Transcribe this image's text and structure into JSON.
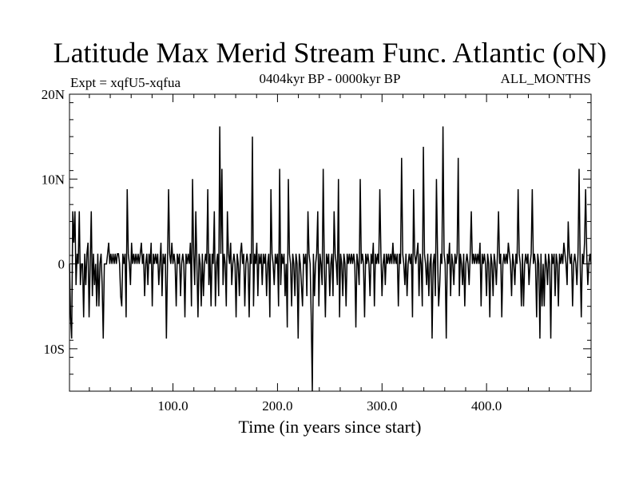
{
  "chart_data": {
    "type": "line",
    "title": "Latitude Max Merid Stream Func. Atlantic (oN)",
    "subtitle_left": "Expt = xqfU5-xqfua",
    "subtitle_center": "0404kyr BP - 0000kyr BP",
    "subtitle_right": "ALL_MONTHS",
    "xlabel": "Time (in years since start)",
    "ylabel": "",
    "xlim": [
      1,
      500
    ],
    "ylim": [
      -15,
      20
    ],
    "x_ticks": [
      {
        "value": 100,
        "label": "100.0"
      },
      {
        "value": 200,
        "label": "200.0"
      },
      {
        "value": 300,
        "label": "300.0"
      },
      {
        "value": 400,
        "label": "400.0"
      }
    ],
    "y_ticks": [
      {
        "value": 20,
        "label": "20N"
      },
      {
        "value": 10,
        "label": "10N"
      },
      {
        "value": 0,
        "label": "0"
      },
      {
        "value": -10,
        "label": "10S"
      }
    ],
    "grid": false,
    "series": [
      {
        "name": "",
        "color": "#000000",
        "values": [
          0,
          -6.3,
          -8.8,
          6.2,
          2.5,
          6.2,
          -2.5,
          1.2,
          0,
          6.2,
          -2.5,
          0,
          0,
          -6.3,
          1.2,
          -2.5,
          1.2,
          2.5,
          -6.3,
          0,
          6.2,
          -3.8,
          1.2,
          -2.5,
          0,
          -5,
          1.2,
          -5,
          0,
          1.2,
          -2.5,
          -8.8,
          0,
          0,
          0,
          1.2,
          2.5,
          0,
          1.2,
          0,
          1.2,
          0,
          1.2,
          0,
          1.2,
          1.2,
          0,
          -3.8,
          -5,
          1.2,
          0,
          1.2,
          -6.3,
          8.8,
          1.2,
          0,
          -2.5,
          2.5,
          0,
          1.2,
          0,
          1.2,
          0,
          1.2,
          0,
          1.2,
          2.5,
          0,
          1.2,
          -3.8,
          0,
          1.2,
          -2.5,
          1.2,
          0,
          2.5,
          -5,
          1.2,
          0,
          1.2,
          0,
          1.2,
          -2.5,
          0,
          2.5,
          -3.8,
          1.2,
          0,
          1.2,
          -8.8,
          0,
          8.8,
          1.2,
          0,
          2.5,
          0,
          1.2,
          0,
          -5,
          1.2,
          0,
          1.2,
          -3.8,
          0,
          1.2,
          0,
          -6.3,
          1.2,
          0,
          1.2,
          0,
          2.5,
          -5,
          10,
          1.2,
          -2.5,
          6.2,
          0,
          -6.3,
          1.2,
          0,
          -5,
          1.2,
          -3.8,
          0,
          1.2,
          0,
          8.8,
          -2.5,
          1.2,
          -5,
          1.2,
          0,
          6.2,
          -5,
          0,
          1.2,
          -3.8,
          16.2,
          1.2,
          11.2,
          -2.5,
          1.2,
          0,
          -5,
          6.2,
          1.2,
          0,
          2.5,
          -2.5,
          0,
          1.2,
          0,
          -6.3,
          1.2,
          0,
          -3.8,
          1.2,
          2.5,
          0,
          1.2,
          -5,
          0,
          1.2,
          0,
          -6.3,
          1.2,
          0,
          15,
          -5,
          1.2,
          0,
          2.5,
          -3.8,
          1.2,
          0,
          1.2,
          -2.5,
          1.2,
          0,
          1.2,
          -3.8,
          0,
          1.2,
          -6.3,
          8.8,
          1.2,
          0,
          -2.5,
          1.2,
          0,
          1.2,
          -5,
          11.2,
          -2.5,
          1.2,
          0,
          1.2,
          -3.8,
          0,
          -7.5,
          10,
          1.2,
          0,
          -5,
          1.2,
          0,
          -3.8,
          1.2,
          0,
          -8.8,
          1.2,
          0,
          -2.5,
          -5,
          1.2,
          0,
          1.2,
          -3.8,
          6.2,
          1.2,
          0,
          -6.3,
          -15,
          1.2,
          -3.8,
          0,
          1.2,
          6.2,
          -5,
          1.2,
          0,
          -2.5,
          11.2,
          0,
          -6.3,
          1.2,
          0,
          1.2,
          -3.8,
          0,
          1.2,
          -3.8,
          6.2,
          1.2,
          0,
          -2.5,
          10,
          -6.3,
          1.2,
          0,
          -3.8,
          1.2,
          0,
          -5,
          1.2,
          0,
          1.2,
          0,
          1.2,
          0,
          1.2,
          0,
          -7.5,
          1.2,
          0,
          -2.5,
          10,
          0,
          1.2,
          0,
          -6.3,
          1.2,
          0,
          1.2,
          0,
          -3.8,
          1.2,
          0,
          2.5,
          -5,
          1.2,
          0,
          1.2,
          0,
          8.8,
          1.2,
          -3.8,
          0,
          1.2,
          -2.5,
          1.2,
          0,
          1.2,
          0,
          1.2,
          0,
          2.5,
          0,
          1.2,
          0,
          1.2,
          -5,
          1.2,
          0,
          12.5,
          1.2,
          0,
          -2.5,
          1.2,
          -3.8,
          0,
          1.2,
          0,
          1.2,
          -6.3,
          8.8,
          1.2,
          0,
          1.2,
          2.5,
          -3.8,
          1.2,
          0,
          -5,
          13.8,
          1.2,
          0,
          -2.5,
          1.2,
          -3.8,
          0,
          1.2,
          -8.8,
          0,
          1.2,
          -3.8,
          10,
          1.2,
          -5,
          -2.5,
          1.2,
          0,
          16.2,
          1.2,
          0,
          -8.8,
          1.2,
          0,
          2.5,
          -3.8,
          1.2,
          0,
          -2.5,
          1.2,
          0,
          1.2,
          12.5,
          -3.8,
          1.2,
          0,
          -2.5,
          1.2,
          -5,
          0,
          1.2,
          0,
          -2.5,
          1.2,
          6.2,
          0,
          1.2,
          0,
          1.2,
          0,
          1.2,
          0,
          2.5,
          -5,
          1.2,
          0,
          1.2,
          0,
          -3.8,
          1.2,
          0,
          -6.3,
          1.2,
          0,
          -3.8,
          1.2,
          0,
          -2.5,
          1.2,
          6.2,
          0,
          1.2,
          -6.3,
          0,
          1.2,
          0,
          1.2,
          0,
          2.5,
          1.2,
          0,
          -3.8,
          1.2,
          0,
          -2.5,
          1.2,
          0,
          8.8,
          1.2,
          0,
          -5,
          1.2,
          -5,
          0,
          1.2,
          0,
          1.2,
          -2.5,
          0,
          1.2,
          8.8,
          0,
          1.2,
          0,
          -6.3,
          1.2,
          0,
          -8.8,
          1.2,
          -5,
          0,
          -5,
          1.2,
          0,
          -2.5,
          1.2,
          0,
          -8.8,
          1.2,
          0,
          1.2,
          -3.8,
          1.2,
          0,
          -5,
          1.2,
          0,
          1.2,
          0,
          2.5,
          1.2,
          0,
          -2.5,
          5,
          1.2,
          0,
          1.2,
          -5,
          0,
          1.2,
          0,
          -2.5,
          1.2,
          11.2,
          0,
          -6.3,
          1.2,
          0,
          2.5,
          8.8,
          1.2,
          -2.5,
          0,
          1.2,
          0
        ]
      }
    ]
  }
}
